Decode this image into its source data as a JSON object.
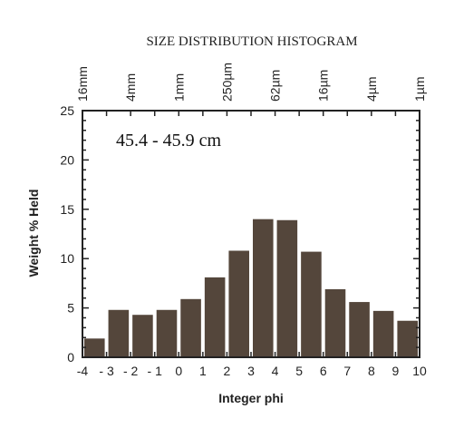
{
  "chart_data": {
    "type": "bar",
    "title": "SIZE DISTRIBUTION HISTOGRAM",
    "annotation": "45.4 - 45.9 cm",
    "xlabel": "Integer phi",
    "ylabel": "Weight % Held",
    "x_ticks": [
      "-4",
      "- 3",
      "- 2",
      "- 1",
      "0",
      "1",
      "2",
      "3",
      "4",
      "5",
      "6",
      "7",
      "8",
      "9",
      "10"
    ],
    "top_ticks": [
      "16mm",
      "4mm",
      "1mm",
      "250µm",
      "62µm",
      "16µm",
      "4µm",
      "1µm"
    ],
    "y_ticks": [
      "0",
      "5",
      "10",
      "15",
      "20",
      "25"
    ],
    "xlim": [
      -4,
      10
    ],
    "ylim": [
      0,
      25
    ],
    "bins": [
      {
        "from": -4,
        "to": -3,
        "value": 1.9
      },
      {
        "from": -3,
        "to": -2,
        "value": 4.8
      },
      {
        "from": -2,
        "to": -1,
        "value": 4.3
      },
      {
        "from": -1,
        "to": 0,
        "value": 4.8
      },
      {
        "from": 0,
        "to": 1,
        "value": 5.9
      },
      {
        "from": 1,
        "to": 2,
        "value": 8.1
      },
      {
        "from": 2,
        "to": 3,
        "value": 10.8
      },
      {
        "from": 3,
        "to": 4,
        "value": 14.0
      },
      {
        "from": 4,
        "to": 5,
        "value": 13.9
      },
      {
        "from": 5,
        "to": 6,
        "value": 10.7
      },
      {
        "from": 6,
        "to": 7,
        "value": 6.9
      },
      {
        "from": 7,
        "to": 8,
        "value": 5.6
      },
      {
        "from": 8,
        "to": 9,
        "value": 4.7
      },
      {
        "from": 9,
        "to": 10,
        "value": 3.7
      }
    ],
    "bar_color": "#54463b",
    "grid": false,
    "legend": "none"
  }
}
